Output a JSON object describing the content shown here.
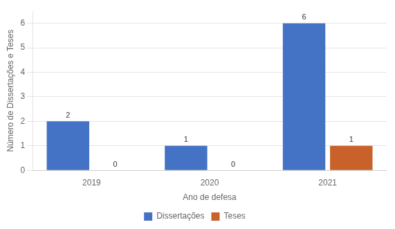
{
  "chart_data": {
    "type": "bar",
    "categories": [
      "2019",
      "2020",
      "2021"
    ],
    "series": [
      {
        "name": "Dissertações",
        "color": "#4472C4",
        "values": [
          2,
          1,
          6
        ]
      },
      {
        "name": "Teses",
        "color": "#C9612A",
        "values": [
          0,
          0,
          1
        ]
      }
    ],
    "xlabel": "Ano de defesa",
    "ylabel": "Número de Dissertações e Teses",
    "ylim": [
      0,
      6.5
    ],
    "yticks": [
      0,
      1,
      2,
      3,
      4,
      5,
      6
    ],
    "grid": true,
    "legend": "bottom",
    "data_labels": true
  }
}
